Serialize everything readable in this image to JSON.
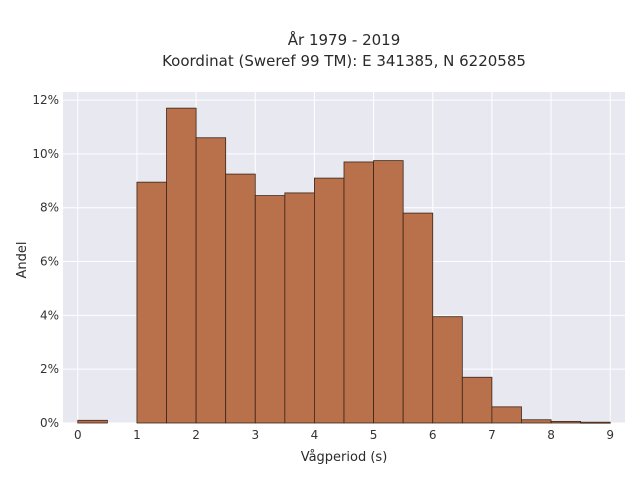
{
  "chart_data": {
    "type": "bar",
    "title_line1": "År 1979 - 2019",
    "title_line2": "Koordinat (Sweref 99 TM): E 341385, N 6220585",
    "xlabel": "Vågperiod (s)",
    "ylabel": "Andel",
    "bin_width": 0.5,
    "bins": [
      {
        "x0": 0.0,
        "value": 0.1
      },
      {
        "x0": 0.5,
        "value": 0.0
      },
      {
        "x0": 1.0,
        "value": 8.95
      },
      {
        "x0": 1.5,
        "value": 11.7
      },
      {
        "x0": 2.0,
        "value": 10.6
      },
      {
        "x0": 2.5,
        "value": 9.25
      },
      {
        "x0": 3.0,
        "value": 8.45
      },
      {
        "x0": 3.5,
        "value": 8.55
      },
      {
        "x0": 4.0,
        "value": 9.1
      },
      {
        "x0": 4.5,
        "value": 9.7
      },
      {
        "x0": 5.0,
        "value": 9.75
      },
      {
        "x0": 5.5,
        "value": 7.8
      },
      {
        "x0": 6.0,
        "value": 3.95
      },
      {
        "x0": 6.5,
        "value": 1.7
      },
      {
        "x0": 7.0,
        "value": 0.6
      },
      {
        "x0": 7.5,
        "value": 0.12
      },
      {
        "x0": 8.0,
        "value": 0.06
      },
      {
        "x0": 8.5,
        "value": 0.03
      }
    ],
    "xlim": [
      -0.25,
      9.25
    ],
    "ylim": [
      0,
      12.3
    ],
    "xticks": [
      "0",
      "1",
      "2",
      "3",
      "4",
      "5",
      "6",
      "7",
      "8",
      "9"
    ],
    "yticks": [
      "0%",
      "2%",
      "4%",
      "6%",
      "8%",
      "10%",
      "12%"
    ],
    "grid": true,
    "colors": {
      "bar_fill": "#b8714a",
      "bar_edge": "#3b2418",
      "plot_bg": "#e8e8f1",
      "grid": "#ffffff"
    }
  }
}
